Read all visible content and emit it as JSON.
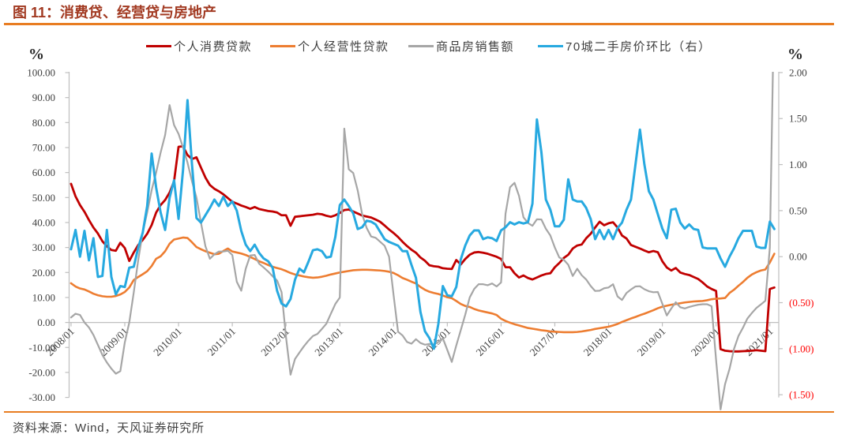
{
  "figure": {
    "title": "图 11：消费贷、经营贷与房地产",
    "title_color": "#A23A22",
    "rule_color": "#E87D22",
    "source": "资料来源：Wind，天风证券研究所",
    "left_unit": "%",
    "right_unit": "%"
  },
  "chart_data": {
    "type": "line",
    "title": "图 11：消费贷、经营贷与房地产",
    "x_start": "2008/01",
    "x_end": "2021/02",
    "x_frequency": "monthly",
    "x_tick_labels": [
      "2008/01",
      "2009/01",
      "2010/01",
      "2011/01",
      "2012/01",
      "2013/01",
      "2014/01",
      "2015/01",
      "2016/01",
      "2017/01",
      "2018/01",
      "2019/01",
      "2020/01",
      "2021/01"
    ],
    "left_axis": {
      "unit": "%",
      "min": -30,
      "max": 100,
      "tick_labels": [
        "100.00",
        "90.00",
        "80.00",
        "70.00",
        "60.00",
        "50.00",
        "40.00",
        "30.00",
        "20.00",
        "10.00",
        "0.00",
        "-10.00",
        "-20.00",
        "-30.00"
      ],
      "tick_values": [
        100,
        90,
        80,
        70,
        60,
        50,
        40,
        30,
        20,
        10,
        0,
        -10,
        -20,
        -30
      ]
    },
    "right_axis": {
      "unit": "%",
      "min": -1.5,
      "max": 2.0,
      "tick_labels": [
        "2.00",
        "1.50",
        "1.00",
        "0.50",
        "0.00",
        "(0.50)",
        "(1.00)",
        "(1.50)"
      ],
      "tick_values": [
        2.0,
        1.5,
        1.0,
        0.5,
        0.0,
        -0.5,
        -1.0,
        -1.5
      ],
      "negative_label_color": "#FF0000"
    },
    "legend_position": "top",
    "grid": false,
    "series": [
      {
        "name": "个人消费贷款",
        "axis": "left",
        "color": "#C00000",
        "width": 2.8,
        "values": [
          55.5,
          50.5,
          47.0,
          44.3,
          41.0,
          38.0,
          35.6,
          32.5,
          30.5,
          29.0,
          28.7,
          31.9,
          29.8,
          24.6,
          28.0,
          31.0,
          33.0,
          35.5,
          39.0,
          44.0,
          47.0,
          49.0,
          52.0,
          56.5,
          70.3,
          70.5,
          67.0,
          65.4,
          66.1,
          62.0,
          58.0,
          55.0,
          53.5,
          52.5,
          51.3,
          49.8,
          48.3,
          47.6,
          46.8,
          46.2,
          45.5,
          46.2,
          45.4,
          45.0,
          44.6,
          44.4,
          44.0,
          42.9,
          42.9,
          38.7,
          42.3,
          42.5,
          42.7,
          42.9,
          43.1,
          43.5,
          43.3,
          42.7,
          42.3,
          42.9,
          43.8,
          45.0,
          45.2,
          44.4,
          43.6,
          42.8,
          42.4,
          42.0,
          41.2,
          40.3,
          38.8,
          37.2,
          35.8,
          34.2,
          32.3,
          30.6,
          29.1,
          27.9,
          26.0,
          24.7,
          22.9,
          22.5,
          22.3,
          21.7,
          21.5,
          21.4,
          25.0,
          23.2,
          25.4,
          27.1,
          28.0,
          28.2,
          27.9,
          27.5,
          26.9,
          26.3,
          25.4,
          22.1,
          22.1,
          19.7,
          18.0,
          18.8,
          17.8,
          17.2,
          18.0,
          18.8,
          19.4,
          19.7,
          22.1,
          23.8,
          25.8,
          27.1,
          29.6,
          30.8,
          31.2,
          33.7,
          35.5,
          38.0,
          40.3,
          38.9,
          39.7,
          40.1,
          38.0,
          34.8,
          33.6,
          31.0,
          30.3,
          29.6,
          28.8,
          28.1,
          28.6,
          28.1,
          24.5,
          22.0,
          20.8,
          21.8,
          20.0,
          19.4,
          19.0,
          18.2,
          17.4,
          16.0,
          14.4,
          13.4,
          12.6,
          -10.7,
          -11.3,
          -11.5,
          -11.6,
          -11.6,
          -11.5,
          -11.4,
          -11.3,
          -11.1,
          -11.3,
          -11.5,
          13.4,
          14.0
        ]
      },
      {
        "name": "个人经营性贷款",
        "axis": "left",
        "color": "#ED7D31",
        "width": 2.6,
        "values": [
          15.7,
          14.4,
          13.6,
          13.2,
          12.4,
          11.5,
          10.9,
          10.5,
          10.3,
          10.3,
          10.6,
          11.2,
          12.2,
          14.0,
          17.0,
          18.2,
          19.3,
          20.5,
          22.6,
          25.5,
          26.5,
          28.5,
          31.5,
          33.2,
          33.6,
          34.0,
          33.8,
          32.1,
          30.2,
          29.3,
          28.5,
          27.9,
          27.3,
          27.5,
          28.6,
          29.6,
          28.4,
          28.0,
          27.6,
          27.0,
          26.2,
          25.4,
          24.5,
          23.8,
          23.0,
          22.3,
          21.8,
          21.3,
          20.6,
          19.8,
          19.2,
          18.8,
          18.4,
          18.1,
          17.9,
          18.0,
          18.3,
          18.7,
          19.2,
          19.6,
          20.0,
          20.3,
          20.6,
          20.9,
          21.0,
          21.1,
          21.1,
          21.0,
          20.9,
          20.8,
          20.6,
          20.3,
          19.8,
          18.9,
          17.8,
          17.1,
          16.3,
          15.6,
          14.2,
          13.1,
          12.3,
          11.8,
          11.4,
          10.8,
          10.1,
          9.7,
          8.6,
          7.4,
          6.6,
          6.2,
          5.4,
          4.8,
          4.4,
          4.0,
          3.6,
          3.0,
          1.5,
          0.6,
          -0.1,
          -0.7,
          -1.2,
          -1.7,
          -2.2,
          -2.5,
          -2.8,
          -3.1,
          -3.3,
          -3.6,
          -3.7,
          -3.8,
          -3.9,
          -3.9,
          -3.9,
          -3.8,
          -3.6,
          -3.3,
          -3.0,
          -2.6,
          -2.3,
          -2.0,
          -1.7,
          -1.2,
          -0.6,
          0.2,
          0.9,
          1.6,
          2.2,
          2.9,
          3.5,
          4.2,
          4.9,
          5.7,
          6.3,
          6.7,
          7.1,
          7.4,
          7.7,
          8.0,
          8.2,
          8.4,
          8.5,
          8.6,
          8.9,
          9.3,
          9.5,
          9.6,
          9.8,
          11.8,
          13.1,
          14.7,
          16.2,
          17.9,
          19.2,
          20.1,
          20.8,
          21.2,
          24.0,
          27.5
        ]
      },
      {
        "name": "商品房销售额",
        "axis": "left",
        "color": "#A6A6A6",
        "width": 2.2,
        "values": [
          2.0,
          3.5,
          3.0,
          0.0,
          -2.0,
          -5.0,
          -9.0,
          -13.0,
          -16.0,
          -18.5,
          -20.5,
          -19.5,
          -8.0,
          0.0,
          12.0,
          25.0,
          36.0,
          44.0,
          53.0,
          60.0,
          68.0,
          75.0,
          87.0,
          79.0,
          75.5,
          70.0,
          64.0,
          56.5,
          50.0,
          40.0,
          30.5,
          25.5,
          27.3,
          28.4,
          28.4,
          28.7,
          27.0,
          16.3,
          12.7,
          21.5,
          26.8,
          27.0,
          23.5,
          22.0,
          20.4,
          18.5,
          16.8,
          12.1,
          -6.0,
          -20.9,
          -14.6,
          -12.0,
          -9.5,
          -7.3,
          -5.4,
          -4.6,
          -2.6,
          -0.5,
          3.5,
          7.4,
          10.0,
          77.6,
          61.3,
          59.8,
          52.8,
          43.2,
          37.8,
          34.4,
          33.9,
          32.3,
          30.7,
          26.3,
          11.0,
          -3.7,
          -5.2,
          -7.8,
          -8.5,
          -6.7,
          -8.2,
          -8.9,
          -8.6,
          -8.8,
          -7.8,
          -6.3,
          -11.0,
          -15.8,
          -9.2,
          -3.1,
          3.1,
          10.0,
          13.4,
          15.3,
          15.3,
          14.9,
          15.6,
          14.4,
          16.0,
          43.6,
          54.1,
          55.9,
          50.7,
          42.1,
          39.8,
          38.7,
          41.3,
          41.2,
          37.5,
          34.8,
          30.0,
          26.0,
          25.1,
          23.1,
          18.6,
          21.5,
          18.9,
          17.2,
          14.6,
          12.6,
          12.7,
          13.7,
          14.0,
          15.3,
          10.4,
          9.0,
          11.8,
          13.2,
          14.4,
          14.5,
          13.3,
          12.5,
          12.1,
          12.2,
          7.5,
          2.8,
          5.6,
          8.1,
          6.1,
          5.6,
          6.2,
          6.7,
          7.1,
          7.3,
          7.3,
          6.5,
          -15.0,
          -34.8,
          -24.7,
          -18.6,
          -10.6,
          -5.4,
          -2.1,
          1.6,
          3.8,
          5.8,
          7.2,
          8.7,
          30.0,
          133.4
        ]
      },
      {
        "name": "70城二手房价环比（右）",
        "axis": "right",
        "color": "#27A9E0",
        "width": 3.0,
        "values": [
          0.08,
          0.29,
          0.0,
          0.28,
          -0.04,
          0.2,
          -0.22,
          -0.21,
          0.29,
          -0.22,
          -0.41,
          -0.32,
          -0.33,
          -0.12,
          -0.11,
          0.1,
          0.26,
          0.55,
          1.12,
          0.75,
          0.48,
          0.29,
          0.64,
          0.83,
          0.41,
          0.94,
          1.7,
          1.0,
          0.42,
          0.37,
          0.45,
          0.53,
          0.62,
          0.55,
          0.65,
          0.55,
          0.6,
          0.5,
          0.28,
          0.13,
          0.06,
          0.13,
          0.04,
          -0.02,
          -0.05,
          -0.12,
          -0.37,
          -0.51,
          -0.54,
          -0.46,
          -0.25,
          -0.13,
          -0.17,
          -0.055,
          0.07,
          0.08,
          0.06,
          -0.01,
          0.0,
          0.215,
          0.56,
          0.62,
          0.55,
          0.47,
          0.3,
          0.32,
          0.39,
          0.38,
          0.35,
          0.27,
          0.19,
          0.16,
          0.14,
          0.12,
          0.06,
          0.06,
          -0.09,
          -0.23,
          -0.6,
          -0.81,
          -0.885,
          -1.0,
          -0.73,
          -0.32,
          -0.42,
          -0.43,
          -0.33,
          -0.03,
          0.12,
          0.23,
          0.285,
          0.285,
          0.19,
          0.21,
          0.2,
          0.17,
          0.285,
          0.32,
          0.374,
          0.35,
          0.374,
          0.36,
          0.374,
          0.575,
          1.49,
          1.135,
          0.62,
          0.51,
          0.33,
          0.33,
          0.4,
          0.84,
          0.62,
          0.6,
          0.6,
          0.53,
          0.41,
          0.19,
          0.29,
          0.19,
          0.29,
          0.19,
          0.31,
          0.37,
          0.51,
          0.62,
          1.0,
          1.38,
          1.0,
          0.71,
          0.62,
          0.46,
          0.305,
          0.2,
          0.51,
          0.52,
          0.37,
          0.305,
          0.35,
          0.3,
          0.29,
          0.1,
          0.09,
          0.09,
          0.09,
          -0.02,
          -0.11,
          0.0,
          0.09,
          0.2,
          0.28,
          0.28,
          0.28,
          0.11,
          0.095,
          0.095,
          0.38,
          0.3
        ]
      }
    ]
  },
  "layout_colors": {
    "axis": "#BFBFBF",
    "tick_label": "#404040"
  }
}
